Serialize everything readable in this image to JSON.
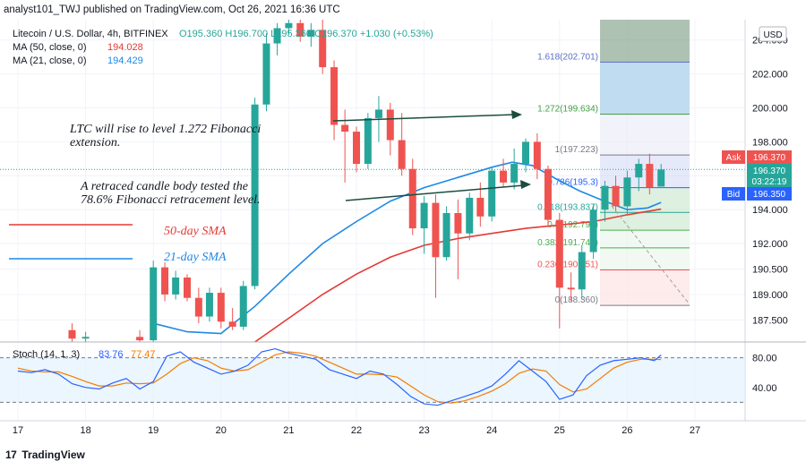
{
  "publisher_line": "analyst101_TWJ published on TradingView.com, Oct 26, 2021 16:36 UTC",
  "legend": {
    "symbol": "Litecoin / U.S. Dollar, 4h, BITFINEX",
    "ohlc": "O195.360 H196.700 L195.360 C196.370 +1.030 (+0.53%)",
    "ma50_label": "MA (50, close, 0)",
    "ma50_value": "194.028",
    "ma21_label": "MA (21, close, 0)",
    "ma21_value": "194.429",
    "stoch_label": "Stoch (14, 1, 3)",
    "stoch_k": "83.76",
    "stoch_d": "77.47"
  },
  "currency": "USD",
  "price_tags": {
    "ask_label": "Ask",
    "ask_value": "196.370",
    "last_value": "196.370",
    "countdown": "03:22:19",
    "bid_label": "Bid",
    "bid_value": "196.350"
  },
  "annotations": {
    "note1_line1": "LTC will rise to  level 1.272 Fibonacci",
    "note1_line2": "extension.",
    "note2_line1": "A retraced candle body tested the",
    "note2_line2": "78.6% Fibonacci retracement level.",
    "sma50": "50-day SMA",
    "sma21": "21-day SMA"
  },
  "footer": {
    "logo": "17",
    "brand": "TradingView"
  },
  "colors": {
    "up": "#26a69a",
    "down": "#ef5350",
    "ma50": "#e53935",
    "ma21": "#1e88e5",
    "arrow": "#1b4d3e",
    "stoch_k": "#2962ff",
    "stoch_d": "#f57c00"
  },
  "chart_data": {
    "type": "candlestick",
    "timeframe": "4h",
    "x_ticks": [
      "17",
      "18",
      "19",
      "20",
      "21",
      "22",
      "23",
      "24",
      "25",
      "26",
      "27"
    ],
    "y_ticks": [
      "187.500",
      "189.000",
      "190.500",
      "192.000",
      "194.000",
      "196.000",
      "198.000",
      "200.000",
      "202.000",
      "204.000"
    ],
    "ylim": [
      186.2,
      205.2
    ],
    "candles": [
      {
        "t": 0.8,
        "o": 186.9,
        "h": 187.3,
        "l": 186.2,
        "c": 186.4
      },
      {
        "t": 1.0,
        "o": 186.4,
        "h": 186.8,
        "l": 186.2,
        "c": 186.5
      },
      {
        "t": 1.8,
        "o": 186.5,
        "h": 186.9,
        "l": 186.2,
        "c": 186.3
      },
      {
        "t": 2.0,
        "o": 186.3,
        "h": 191.0,
        "l": 186.2,
        "c": 190.6
      },
      {
        "t": 2.17,
        "o": 190.6,
        "h": 190.9,
        "l": 188.6,
        "c": 189.0
      },
      {
        "t": 2.33,
        "o": 189.0,
        "h": 190.4,
        "l": 188.7,
        "c": 190.0
      },
      {
        "t": 2.5,
        "o": 190.0,
        "h": 190.2,
        "l": 188.6,
        "c": 188.8
      },
      {
        "t": 2.67,
        "o": 188.8,
        "h": 189.4,
        "l": 187.3,
        "c": 187.7
      },
      {
        "t": 2.83,
        "o": 187.7,
        "h": 189.4,
        "l": 187.4,
        "c": 189.1
      },
      {
        "t": 3.0,
        "o": 189.1,
        "h": 189.4,
        "l": 187.0,
        "c": 187.4
      },
      {
        "t": 3.17,
        "o": 187.4,
        "h": 188.2,
        "l": 186.9,
        "c": 187.1
      },
      {
        "t": 3.33,
        "o": 187.1,
        "h": 189.8,
        "l": 186.9,
        "c": 189.5
      },
      {
        "t": 3.5,
        "o": 189.5,
        "h": 200.6,
        "l": 189.3,
        "c": 200.2
      },
      {
        "t": 3.67,
        "o": 200.2,
        "h": 204.4,
        "l": 199.8,
        "c": 203.8
      },
      {
        "t": 3.83,
        "o": 203.8,
        "h": 205.0,
        "l": 203.1,
        "c": 204.7
      },
      {
        "t": 4.0,
        "o": 204.7,
        "h": 205.2,
        "l": 204.3,
        "c": 205.0
      },
      {
        "t": 4.17,
        "o": 205.0,
        "h": 205.2,
        "l": 203.9,
        "c": 204.2
      },
      {
        "t": 4.33,
        "o": 204.2,
        "h": 205.0,
        "l": 203.6,
        "c": 204.6
      },
      {
        "t": 4.5,
        "o": 204.6,
        "h": 205.2,
        "l": 202.0,
        "c": 202.4
      },
      {
        "t": 4.67,
        "o": 202.4,
        "h": 202.8,
        "l": 198.1,
        "c": 199.0
      },
      {
        "t": 4.83,
        "o": 199.0,
        "h": 199.9,
        "l": 195.6,
        "c": 198.6
      },
      {
        "t": 5.0,
        "o": 198.6,
        "h": 198.9,
        "l": 196.2,
        "c": 196.7
      },
      {
        "t": 5.17,
        "o": 196.7,
        "h": 199.7,
        "l": 196.4,
        "c": 199.4
      },
      {
        "t": 5.33,
        "o": 199.4,
        "h": 200.7,
        "l": 198.0,
        "c": 199.9
      },
      {
        "t": 5.5,
        "o": 199.9,
        "h": 200.3,
        "l": 197.2,
        "c": 198.1
      },
      {
        "t": 5.67,
        "o": 198.1,
        "h": 199.7,
        "l": 196.0,
        "c": 196.4
      },
      {
        "t": 5.83,
        "o": 196.4,
        "h": 197.0,
        "l": 192.5,
        "c": 192.9
      },
      {
        "t": 6.0,
        "o": 192.9,
        "h": 194.8,
        "l": 191.4,
        "c": 194.4
      },
      {
        "t": 6.17,
        "o": 194.4,
        "h": 194.9,
        "l": 188.8,
        "c": 191.2
      },
      {
        "t": 6.33,
        "o": 191.2,
        "h": 194.2,
        "l": 191.0,
        "c": 193.8
      },
      {
        "t": 6.5,
        "o": 193.8,
        "h": 194.6,
        "l": 189.9,
        "c": 192.6
      },
      {
        "t": 6.67,
        "o": 192.6,
        "h": 195.0,
        "l": 192.2,
        "c": 194.7
      },
      {
        "t": 6.83,
        "o": 194.7,
        "h": 195.6,
        "l": 193.0,
        "c": 193.6
      },
      {
        "t": 7.0,
        "o": 193.6,
        "h": 196.5,
        "l": 193.3,
        "c": 196.3
      },
      {
        "t": 7.17,
        "o": 196.3,
        "h": 197.0,
        "l": 195.3,
        "c": 195.6
      },
      {
        "t": 7.33,
        "o": 195.6,
        "h": 197.6,
        "l": 195.2,
        "c": 196.7
      },
      {
        "t": 7.5,
        "o": 196.7,
        "h": 198.2,
        "l": 196.2,
        "c": 198.0
      },
      {
        "t": 7.67,
        "o": 198.0,
        "h": 198.5,
        "l": 195.8,
        "c": 196.4
      },
      {
        "t": 7.83,
        "o": 196.4,
        "h": 196.6,
        "l": 193.1,
        "c": 193.4
      },
      {
        "t": 8.0,
        "o": 193.4,
        "h": 193.8,
        "l": 187.0,
        "c": 189.4
      },
      {
        "t": 8.17,
        "o": 189.4,
        "h": 190.3,
        "l": 188.6,
        "c": 189.3
      },
      {
        "t": 8.33,
        "o": 189.3,
        "h": 191.9,
        "l": 188.7,
        "c": 191.5
      },
      {
        "t": 8.5,
        "o": 191.5,
        "h": 194.3,
        "l": 191.1,
        "c": 194.0
      },
      {
        "t": 8.67,
        "o": 194.0,
        "h": 195.7,
        "l": 193.3,
        "c": 195.4
      },
      {
        "t": 8.83,
        "o": 195.4,
        "h": 196.0,
        "l": 193.9,
        "c": 194.2
      },
      {
        "t": 9.0,
        "o": 194.2,
        "h": 196.3,
        "l": 193.7,
        "c": 195.9
      },
      {
        "t": 9.17,
        "o": 195.9,
        "h": 197.0,
        "l": 195.1,
        "c": 196.7
      },
      {
        "t": 9.33,
        "o": 196.7,
        "h": 197.3,
        "l": 194.9,
        "c": 195.3
      },
      {
        "t": 9.5,
        "o": 195.36,
        "h": 196.7,
        "l": 195.36,
        "c": 196.37
      }
    ],
    "ma50": [
      [
        3.5,
        186.2
      ],
      [
        4.0,
        187.6
      ],
      [
        4.5,
        189.0
      ],
      [
        5.0,
        190.2
      ],
      [
        5.5,
        191.2
      ],
      [
        6.0,
        191.9
      ],
      [
        6.5,
        192.3
      ],
      [
        7.0,
        192.6
      ],
      [
        7.5,
        192.9
      ],
      [
        8.0,
        193.1
      ],
      [
        8.5,
        193.3
      ],
      [
        9.0,
        193.7
      ],
      [
        9.5,
        194.03
      ]
    ],
    "ma21": [
      [
        2.0,
        187.3
      ],
      [
        2.5,
        186.8
      ],
      [
        3.0,
        186.7
      ],
      [
        3.5,
        188.3
      ],
      [
        4.0,
        190.2
      ],
      [
        4.5,
        192.0
      ],
      [
        5.0,
        193.3
      ],
      [
        5.5,
        194.5
      ],
      [
        6.0,
        195.3
      ],
      [
        6.5,
        195.9
      ],
      [
        7.0,
        196.5
      ],
      [
        7.3,
        196.8
      ],
      [
        7.6,
        196.6
      ],
      [
        8.0,
        195.7
      ],
      [
        8.3,
        195.1
      ],
      [
        8.6,
        194.6
      ],
      [
        9.0,
        194.0
      ],
      [
        9.3,
        194.1
      ],
      [
        9.5,
        194.43
      ]
    ],
    "fib_levels": [
      {
        "label": "1.618(202.701)",
        "value": 202.701,
        "color": "#5b6fc4"
      },
      {
        "label": "1.272(199.634)",
        "value": 199.634,
        "color": "#43a047"
      },
      {
        "label": "1(197.223)",
        "value": 197.223,
        "color": "#787b86"
      },
      {
        "label": "0.786(195.3)",
        "value": 195.3,
        "color": "#2962ff"
      },
      {
        "label": "0.618(193.837)",
        "value": 193.837,
        "color": "#26a69a"
      },
      {
        "label": "0.5(192.792)",
        "value": 192.792,
        "color": "#4caf50"
      },
      {
        "label": "0.382(191.746)",
        "value": 191.746,
        "color": "#4caf50"
      },
      {
        "label": "0.236(190.451)",
        "value": 190.451,
        "color": "#ef5350"
      },
      {
        "label": "0(188.360)",
        "value": 188.36,
        "color": "#787b86"
      }
    ],
    "stoch_ylim": [
      0,
      100
    ],
    "stoch_ticks": [
      "40.00",
      "80.00"
    ],
    "stoch_band": [
      20,
      80
    ],
    "stoch_k_series": [
      [
        0,
        62
      ],
      [
        0.2,
        60
      ],
      [
        0.4,
        64
      ],
      [
        0.6,
        58
      ],
      [
        0.8,
        45
      ],
      [
        1.0,
        40
      ],
      [
        1.2,
        38
      ],
      [
        1.4,
        46
      ],
      [
        1.6,
        52
      ],
      [
        1.8,
        38
      ],
      [
        2.0,
        48
      ],
      [
        2.2,
        82
      ],
      [
        2.4,
        88
      ],
      [
        2.6,
        74
      ],
      [
        2.8,
        66
      ],
      [
        3.0,
        58
      ],
      [
        3.2,
        62
      ],
      [
        3.4,
        70
      ],
      [
        3.6,
        88
      ],
      [
        3.8,
        92
      ],
      [
        4.0,
        86
      ],
      [
        4.2,
        82
      ],
      [
        4.4,
        78
      ],
      [
        4.6,
        64
      ],
      [
        4.8,
        58
      ],
      [
        5.0,
        52
      ],
      [
        5.2,
        62
      ],
      [
        5.4,
        58
      ],
      [
        5.6,
        44
      ],
      [
        5.8,
        28
      ],
      [
        6.0,
        18
      ],
      [
        6.2,
        16
      ],
      [
        6.4,
        22
      ],
      [
        6.6,
        28
      ],
      [
        6.8,
        34
      ],
      [
        7.0,
        42
      ],
      [
        7.2,
        58
      ],
      [
        7.4,
        76
      ],
      [
        7.6,
        62
      ],
      [
        7.8,
        48
      ],
      [
        8.0,
        24
      ],
      [
        8.2,
        30
      ],
      [
        8.4,
        56
      ],
      [
        8.6,
        70
      ],
      [
        8.8,
        76
      ],
      [
        9.0,
        78
      ],
      [
        9.2,
        80
      ],
      [
        9.4,
        76
      ],
      [
        9.5,
        83.76
      ]
    ],
    "stoch_d_series": [
      [
        0,
        66
      ],
      [
        0.2,
        62
      ],
      [
        0.4,
        61
      ],
      [
        0.6,
        61
      ],
      [
        0.8,
        55
      ],
      [
        1.0,
        48
      ],
      [
        1.2,
        42
      ],
      [
        1.4,
        42
      ],
      [
        1.6,
        46
      ],
      [
        1.8,
        45
      ],
      [
        2.0,
        46
      ],
      [
        2.2,
        58
      ],
      [
        2.4,
        72
      ],
      [
        2.6,
        80
      ],
      [
        2.8,
        76
      ],
      [
        3.0,
        66
      ],
      [
        3.2,
        62
      ],
      [
        3.4,
        64
      ],
      [
        3.6,
        74
      ],
      [
        3.8,
        84
      ],
      [
        4.0,
        88
      ],
      [
        4.2,
        86
      ],
      [
        4.4,
        82
      ],
      [
        4.6,
        74
      ],
      [
        4.8,
        66
      ],
      [
        5.0,
        58
      ],
      [
        5.2,
        58
      ],
      [
        5.4,
        57
      ],
      [
        5.6,
        54
      ],
      [
        5.8,
        42
      ],
      [
        6.0,
        30
      ],
      [
        6.2,
        21
      ],
      [
        6.4,
        19
      ],
      [
        6.6,
        22
      ],
      [
        6.8,
        28
      ],
      [
        7.0,
        35
      ],
      [
        7.2,
        45
      ],
      [
        7.4,
        59
      ],
      [
        7.6,
        65
      ],
      [
        7.8,
        62
      ],
      [
        8.0,
        44
      ],
      [
        8.2,
        34
      ],
      [
        8.4,
        38
      ],
      [
        8.6,
        52
      ],
      [
        8.8,
        66
      ],
      [
        9.0,
        74
      ],
      [
        9.2,
        78
      ],
      [
        9.4,
        78
      ],
      [
        9.5,
        77.47
      ]
    ]
  }
}
